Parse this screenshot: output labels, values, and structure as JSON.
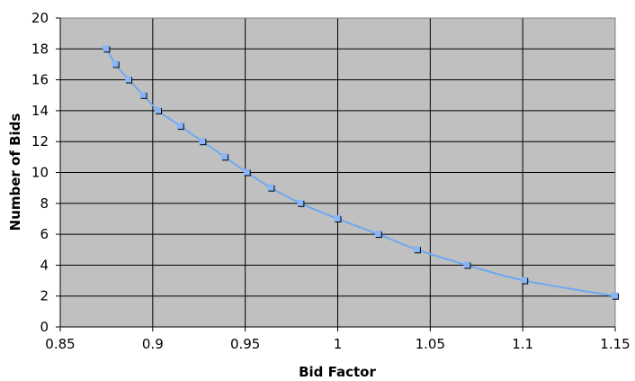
{
  "chart_data": {
    "type": "line",
    "title": "",
    "xlabel": "Bid Factor",
    "ylabel": "Number of Bids",
    "xlim": [
      0.85,
      1.15
    ],
    "ylim": [
      0,
      20
    ],
    "xticks": [
      0.85,
      0.9,
      0.95,
      1,
      1.05,
      1.1,
      1.15
    ],
    "yticks": [
      0,
      2,
      4,
      6,
      8,
      10,
      12,
      14,
      16,
      18,
      20
    ],
    "xtick_labels": [
      "0.85",
      "0.9",
      "0.95",
      "1",
      "1.05",
      "1.1",
      "1.15"
    ],
    "ytick_labels": [
      "0",
      "2",
      "4",
      "6",
      "8",
      "10",
      "12",
      "14",
      "16",
      "18",
      "20"
    ],
    "grid": true,
    "legend": "none",
    "plot_background": "#c0c0c0",
    "line_color": "#6fa8f0",
    "marker_color": "#8ab4f8",
    "series": [
      {
        "x": [
          0.875,
          0.88,
          0.887,
          0.895,
          0.903,
          0.915,
          0.927,
          0.939,
          0.951,
          0.964,
          0.98,
          1.0,
          1.022,
          1.043,
          1.07,
          1.101,
          1.15
        ],
        "y": [
          18,
          17,
          16,
          15,
          14,
          13,
          12,
          11,
          10,
          9,
          8,
          7,
          6,
          5,
          4,
          3,
          2
        ]
      }
    ]
  }
}
